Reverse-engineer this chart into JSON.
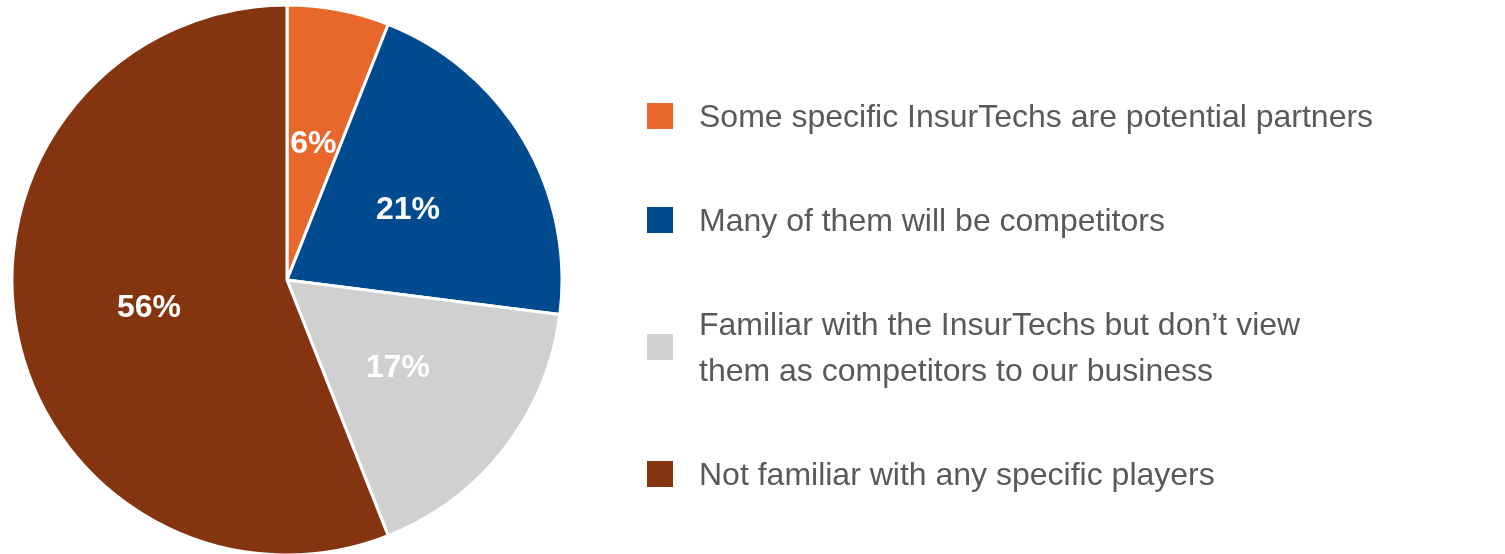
{
  "chart_data": {
    "type": "pie",
    "categories": [
      "Some specific InsurTechs are potential partners",
      "Many of them will be competitors",
      "Familiar with the InsurTechs but don’t view\nthem as competitors to our business",
      "Not familiar with any specific players"
    ],
    "values": [
      6,
      21,
      17,
      56
    ],
    "colors": [
      "#e8672a",
      "#004a8f",
      "#d0d0d0",
      "#84340f"
    ],
    "value_labels": [
      "6%",
      "21%",
      "17%",
      "56%"
    ],
    "legend": "right"
  }
}
